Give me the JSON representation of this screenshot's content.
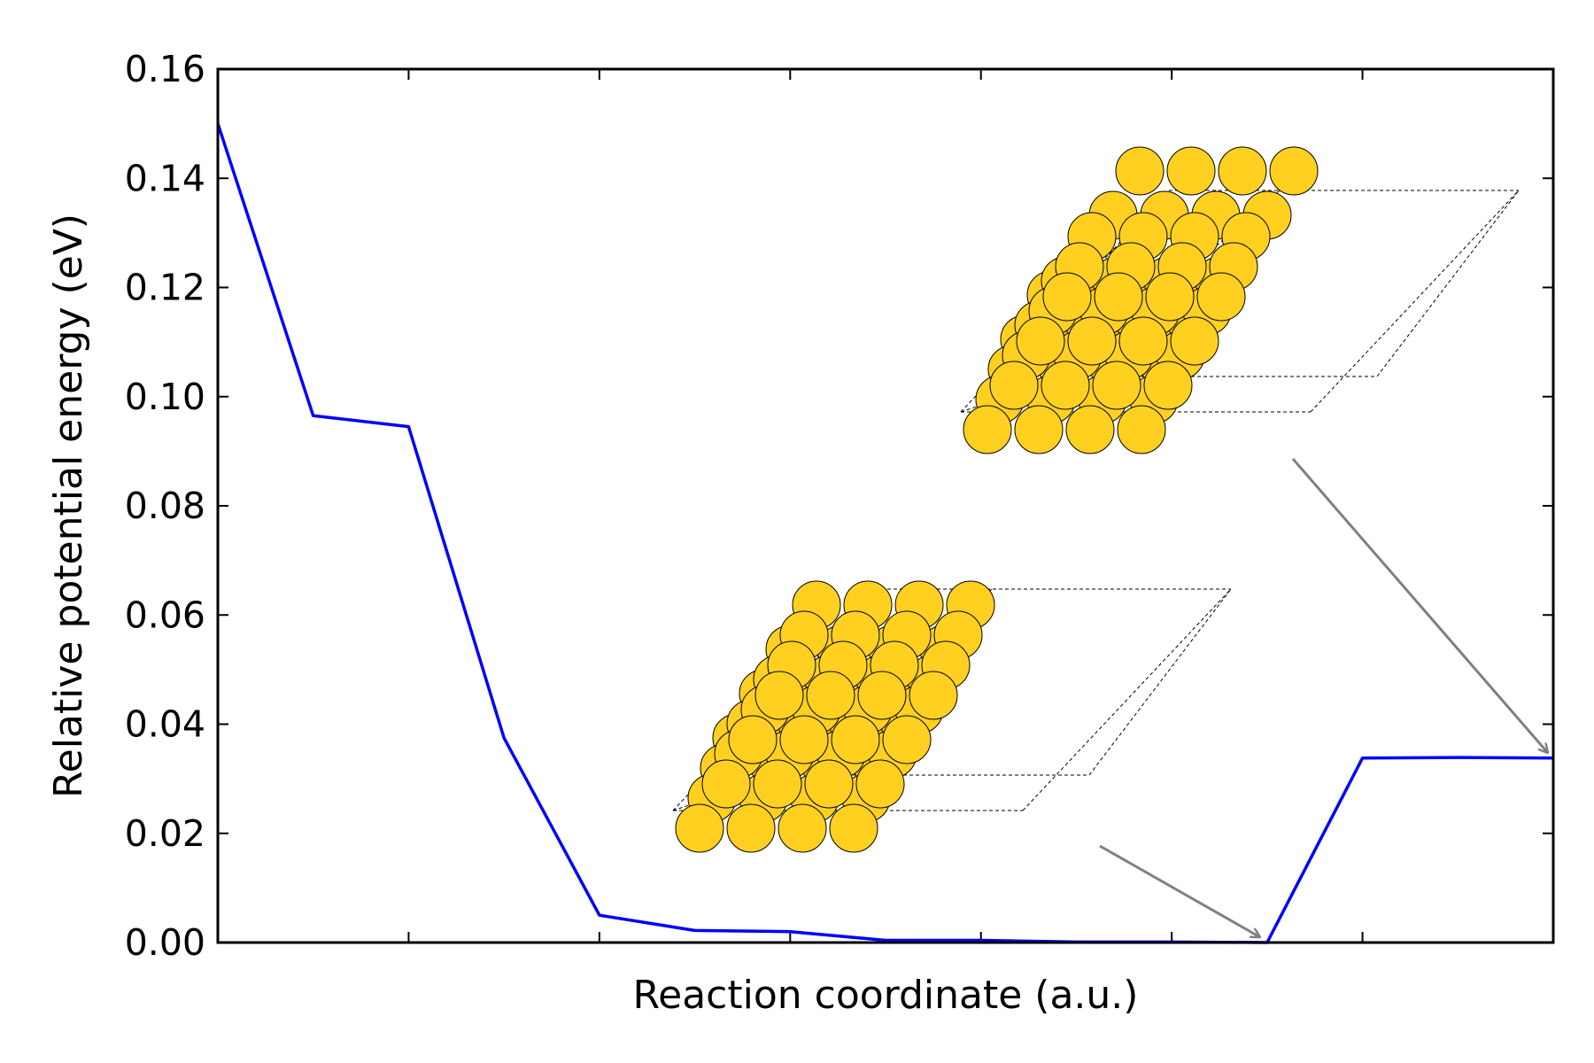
{
  "chart_data": {
    "type": "line",
    "title": "",
    "xlabel": "Reaction coordinate (a.u.)",
    "ylabel": "Relative potential energy (eV)",
    "xlim": [
      0,
      14
    ],
    "ylim": [
      0,
      0.16
    ],
    "yticks": [
      "0.00",
      "0.02",
      "0.04",
      "0.06",
      "0.08",
      "0.10",
      "0.12",
      "0.14",
      "0.16"
    ],
    "x_tick_labels_shown": false,
    "grid": false,
    "legend": "none",
    "series": [
      {
        "color": "#0000ff",
        "x": [
          0,
          1,
          2,
          3,
          4,
          5,
          6,
          7,
          8,
          9,
          10,
          11,
          12,
          13,
          14
        ],
        "values": [
          0.15,
          0.0965,
          0.0945,
          0.0375,
          0.005,
          0.0022,
          0.002,
          0.0004,
          0.0004,
          0.0001,
          0.0001,
          0.0,
          0.0338,
          0.0339,
          0.0338
        ]
      }
    ],
    "annotations": [
      {
        "type": "inset-image",
        "name": "flat-surface-slab",
        "points_to": {
          "x": 11,
          "y": 0.0
        },
        "arrow_color": "#808080"
      },
      {
        "type": "inset-image",
        "name": "reconstructed-surface-slab",
        "points_to": {
          "x": 14,
          "y": 0.0338
        },
        "arrow_color": "#808080"
      }
    ],
    "atom_color": "#ffd020"
  }
}
